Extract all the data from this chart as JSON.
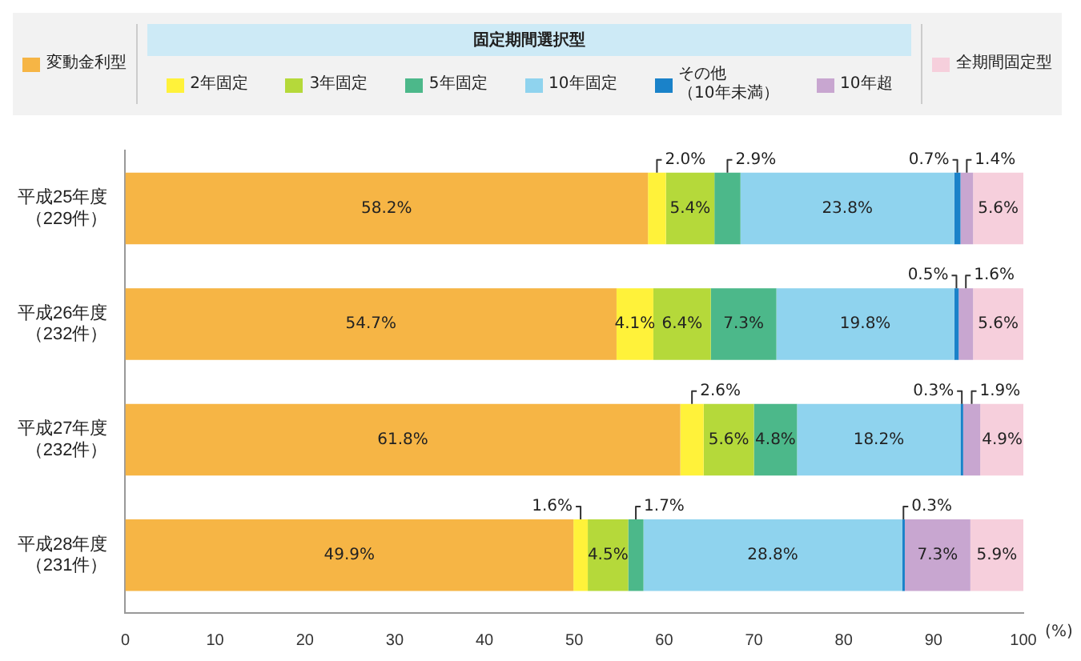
{
  "chart_data": {
    "type": "bar",
    "orientation": "horizontal",
    "stacked": true,
    "legend": "top",
    "legend_title": "固定期間選択型",
    "grid": false,
    "xlabel": "(%)",
    "categories": [
      "平成25年度（229件）",
      "平成26年度（232件）",
      "平成27年度（232件）",
      "平成28年度（231件）"
    ],
    "xlim": [
      0,
      100
    ],
    "xticks": [
      0,
      10,
      20,
      30,
      40,
      50,
      60,
      70,
      80,
      90,
      100
    ],
    "series": [
      {
        "name": "変動金利型",
        "color": "#f6b545",
        "values": [
          58.2,
          54.7,
          61.8,
          49.9
        ],
        "value_labels": [
          "58.2%",
          "54.7%",
          "61.8%",
          "49.9%"
        ]
      },
      {
        "name": "2年固定",
        "color": "#fff23a",
        "values": [
          2.0,
          4.1,
          2.6,
          1.6
        ],
        "value_labels": [
          "2.0%",
          "4.1%",
          "2.6%",
          "1.6%"
        ]
      },
      {
        "name": "3年固定",
        "color": "#b5d93a",
        "values": [
          5.4,
          6.4,
          5.6,
          4.5
        ],
        "value_labels": [
          "5.4%",
          "6.4%",
          "5.6%",
          "4.5%"
        ]
      },
      {
        "name": "5年固定",
        "color": "#4cb88a",
        "values": [
          2.9,
          7.3,
          4.8,
          1.7
        ],
        "value_labels": [
          "2.9%",
          "7.3%",
          "4.8%",
          "1.7%"
        ]
      },
      {
        "name": "10年固定",
        "color": "#8fd3ee",
        "values": [
          23.8,
          19.8,
          18.2,
          28.8
        ],
        "value_labels": [
          "23.8%",
          "19.8%",
          "18.2%",
          "28.8%"
        ]
      },
      {
        "name": "その他（10年未満）",
        "color": "#1a82c9",
        "values": [
          0.7,
          0.5,
          0.3,
          0.3
        ],
        "value_labels": [
          "0.7%",
          "0.5%",
          "0.3%",
          "0.3%"
        ]
      },
      {
        "name": "10年超",
        "color": "#c8a6d0",
        "values": [
          1.4,
          1.6,
          1.9,
          7.3
        ],
        "value_labels": [
          "1.4%",
          "1.6%",
          "1.9%",
          "7.3%"
        ]
      },
      {
        "name": "全期間固定型",
        "color": "#f6cfdc",
        "values": [
          5.6,
          5.6,
          4.9,
          5.9
        ],
        "value_labels": [
          "5.6%",
          "5.6%",
          "4.9%",
          "5.9%"
        ]
      }
    ]
  }
}
